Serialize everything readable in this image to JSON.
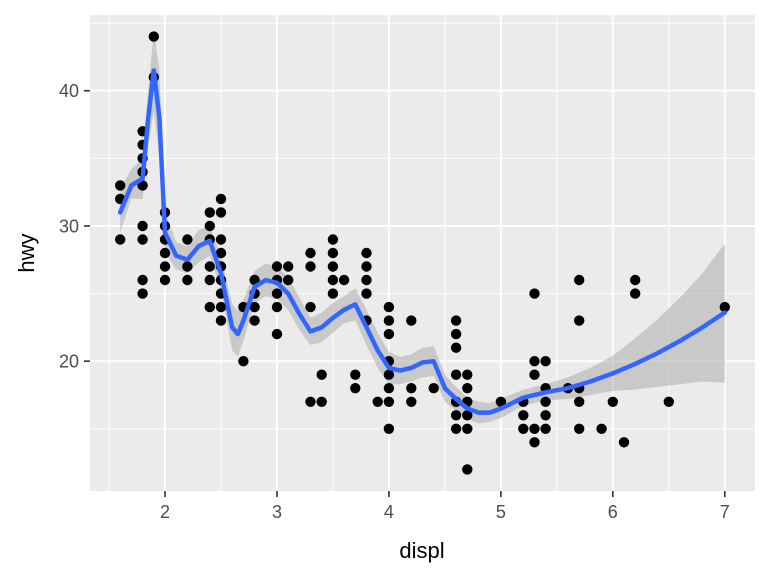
{
  "chart_data": {
    "type": "scatter",
    "xlabel": "displ",
    "ylabel": "hwy",
    "xlim": [
      1.33,
      7.27
    ],
    "ylim": [
      10.4,
      45.6
    ],
    "x_ticks": [
      2,
      3,
      4,
      5,
      6,
      7
    ],
    "y_ticks": [
      20,
      30,
      40
    ],
    "x_tick_labels": [
      "2",
      "3",
      "4",
      "5",
      "6",
      "7"
    ],
    "y_tick_labels": [
      "20",
      "30",
      "40"
    ],
    "grid": true,
    "legend": "none",
    "colors": {
      "panel": "#ebebeb",
      "grid": "#ffffff",
      "points": "#000000",
      "smooth": "#3366ff",
      "ribbon": "#b3b3b3"
    },
    "points": [
      [
        1.6,
        33
      ],
      [
        1.6,
        32
      ],
      [
        1.6,
        29
      ],
      [
        1.8,
        37
      ],
      [
        1.8,
        36
      ],
      [
        1.8,
        35
      ],
      [
        1.8,
        34
      ],
      [
        1.8,
        33
      ],
      [
        1.8,
        30
      ],
      [
        1.8,
        29
      ],
      [
        1.8,
        26
      ],
      [
        1.8,
        25
      ],
      [
        1.9,
        44
      ],
      [
        1.9,
        41
      ],
      [
        2.0,
        31
      ],
      [
        2.0,
        30
      ],
      [
        2.0,
        29
      ],
      [
        2.0,
        28
      ],
      [
        2.0,
        27
      ],
      [
        2.0,
        26
      ],
      [
        2.2,
        29
      ],
      [
        2.2,
        27
      ],
      [
        2.2,
        26
      ],
      [
        2.4,
        31
      ],
      [
        2.4,
        30
      ],
      [
        2.4,
        29
      ],
      [
        2.4,
        27
      ],
      [
        2.4,
        26
      ],
      [
        2.4,
        24
      ],
      [
        2.5,
        32
      ],
      [
        2.5,
        31
      ],
      [
        2.5,
        29
      ],
      [
        2.5,
        28
      ],
      [
        2.5,
        27
      ],
      [
        2.5,
        26
      ],
      [
        2.5,
        25
      ],
      [
        2.5,
        24
      ],
      [
        2.5,
        23
      ],
      [
        2.7,
        24
      ],
      [
        2.7,
        20
      ],
      [
        2.8,
        26
      ],
      [
        2.8,
        25
      ],
      [
        2.8,
        24
      ],
      [
        2.8,
        23
      ],
      [
        3.0,
        27
      ],
      [
        3.0,
        26
      ],
      [
        3.0,
        25
      ],
      [
        3.0,
        24
      ],
      [
        3.0,
        22
      ],
      [
        3.1,
        27
      ],
      [
        3.1,
        26
      ],
      [
        3.3,
        28
      ],
      [
        3.3,
        27
      ],
      [
        3.3,
        24
      ],
      [
        3.3,
        17
      ],
      [
        3.4,
        17
      ],
      [
        3.4,
        19
      ],
      [
        3.5,
        29
      ],
      [
        3.5,
        28
      ],
      [
        3.5,
        27
      ],
      [
        3.5,
        26
      ],
      [
        3.5,
        25
      ],
      [
        3.6,
        26
      ],
      [
        3.7,
        19
      ],
      [
        3.7,
        18
      ],
      [
        3.8,
        28
      ],
      [
        3.8,
        27
      ],
      [
        3.8,
        26
      ],
      [
        3.8,
        25
      ],
      [
        3.8,
        23
      ],
      [
        3.9,
        17
      ],
      [
        4.0,
        24
      ],
      [
        4.0,
        23
      ],
      [
        4.0,
        22
      ],
      [
        4.0,
        20
      ],
      [
        4.0,
        19
      ],
      [
        4.0,
        18
      ],
      [
        4.0,
        17
      ],
      [
        4.0,
        15
      ],
      [
        4.2,
        23
      ],
      [
        4.2,
        18
      ],
      [
        4.2,
        17
      ],
      [
        4.4,
        18
      ],
      [
        4.6,
        23
      ],
      [
        4.6,
        22
      ],
      [
        4.6,
        21
      ],
      [
        4.6,
        19
      ],
      [
        4.6,
        17
      ],
      [
        4.6,
        16
      ],
      [
        4.6,
        15
      ],
      [
        4.7,
        19
      ],
      [
        4.7,
        18
      ],
      [
        4.7,
        17
      ],
      [
        4.7,
        16
      ],
      [
        4.7,
        15
      ],
      [
        4.7,
        12
      ],
      [
        5.0,
        17
      ],
      [
        5.2,
        17
      ],
      [
        5.2,
        16
      ],
      [
        5.2,
        15
      ],
      [
        5.3,
        25
      ],
      [
        5.3,
        20
      ],
      [
        5.3,
        19
      ],
      [
        5.3,
        15
      ],
      [
        5.3,
        14
      ],
      [
        5.4,
        20
      ],
      [
        5.4,
        18
      ],
      [
        5.4,
        17
      ],
      [
        5.4,
        16
      ],
      [
        5.4,
        15
      ],
      [
        5.6,
        18
      ],
      [
        5.7,
        26
      ],
      [
        5.7,
        23
      ],
      [
        5.7,
        18
      ],
      [
        5.7,
        17
      ],
      [
        5.7,
        15
      ],
      [
        5.9,
        15
      ],
      [
        6.0,
        17
      ],
      [
        6.1,
        14
      ],
      [
        6.2,
        26
      ],
      [
        6.2,
        25
      ],
      [
        6.5,
        17
      ],
      [
        7.0,
        24
      ]
    ],
    "smooth": {
      "x": [
        1.6,
        1.7,
        1.8,
        1.85,
        1.9,
        1.95,
        2.0,
        2.1,
        2.2,
        2.3,
        2.4,
        2.5,
        2.6,
        2.65,
        2.7,
        2.8,
        2.9,
        3.0,
        3.1,
        3.2,
        3.3,
        3.4,
        3.5,
        3.6,
        3.7,
        3.8,
        3.9,
        4.0,
        4.1,
        4.2,
        4.3,
        4.4,
        4.5,
        4.6,
        4.7,
        4.8,
        4.9,
        5.0,
        5.2,
        5.4,
        5.6,
        5.8,
        6.0,
        6.2,
        6.4,
        6.6,
        6.8,
        7.0
      ],
      "y": [
        31.0,
        33.0,
        33.5,
        38.0,
        41.5,
        38.0,
        29.5,
        27.8,
        27.5,
        28.5,
        28.9,
        26.5,
        22.5,
        22.0,
        23.0,
        25.5,
        26.0,
        25.8,
        25.0,
        23.5,
        22.2,
        22.5,
        23.2,
        23.8,
        24.2,
        22.5,
        20.8,
        19.5,
        19.3,
        19.5,
        19.9,
        20.0,
        18.0,
        17.2,
        16.5,
        16.2,
        16.2,
        16.5,
        17.3,
        17.7,
        18.0,
        18.5,
        19.1,
        19.8,
        20.6,
        21.5,
        22.5,
        23.6
      ],
      "lo": [
        29.5,
        32.0,
        32.0,
        36.0,
        38.5,
        35.0,
        28.0,
        26.8,
        26.5,
        27.3,
        27.8,
        25.3,
        20.8,
        20.3,
        21.5,
        24.3,
        24.8,
        24.6,
        23.8,
        22.3,
        21.2,
        21.4,
        22.1,
        22.8,
        23.0,
        21.2,
        19.5,
        18.3,
        18.3,
        18.5,
        18.8,
        18.9,
        17.0,
        16.3,
        15.7,
        15.4,
        15.5,
        15.8,
        16.7,
        17.1,
        17.2,
        17.5,
        17.8,
        17.9,
        18.1,
        18.3,
        18.5,
        18.4
      ],
      "hi": [
        32.8,
        34.2,
        35.0,
        40.0,
        44.5,
        41.5,
        31.0,
        28.8,
        28.5,
        29.7,
        30.0,
        27.7,
        24.2,
        23.7,
        24.5,
        26.7,
        27.2,
        27.0,
        26.2,
        24.7,
        23.2,
        23.6,
        24.3,
        24.8,
        25.4,
        23.8,
        22.1,
        20.7,
        20.3,
        20.5,
        21.0,
        21.1,
        19.0,
        18.1,
        17.3,
        17.0,
        16.9,
        17.2,
        17.9,
        18.3,
        18.8,
        19.5,
        20.4,
        21.7,
        23.1,
        24.7,
        26.5,
        28.7
      ]
    }
  }
}
